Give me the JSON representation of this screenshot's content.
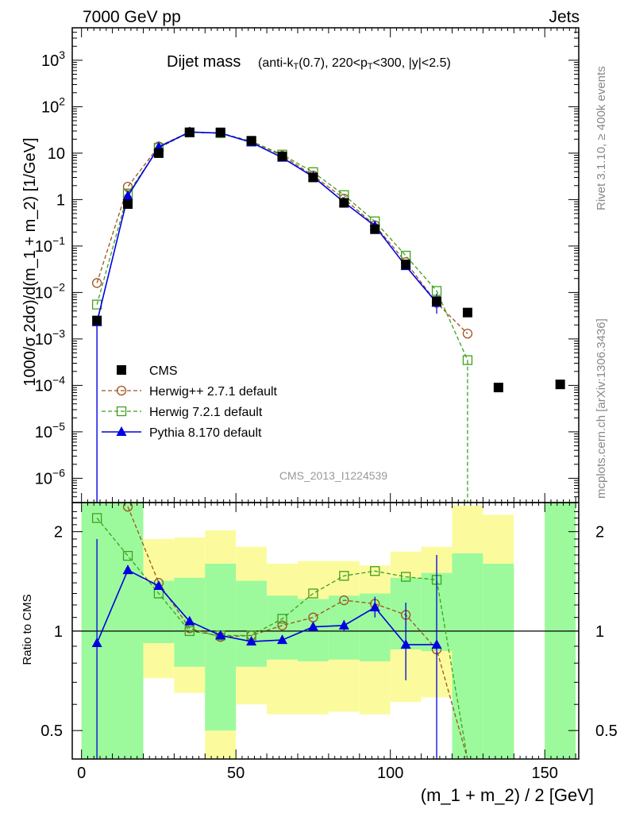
{
  "header": {
    "left": "7000 GeV pp",
    "right": "Jets"
  },
  "side_labels": {
    "rivet": "Rivet 3.1.10, ≥ 400k events",
    "mcplots": "mcplots.cern.ch [arXiv:1306.3436]"
  },
  "colors": {
    "cms": "#000000",
    "herwigpp": "#a0521e",
    "herwig7": "#3f9f1f",
    "pythia": "#0000e0",
    "band_inner": "#9cfa9c",
    "band_outer": "#fbfb9e"
  },
  "chart_data": [
    {
      "type": "scatter",
      "panel": "main",
      "title": "Dijet mass",
      "subtitle": "(anti-kT(0.7), 220<pT<300, |y|<2.5)",
      "analysis_id": "CMS_2013_I1224539",
      "ylabel": "1000/σ 2dσ)/d(m_1 + m_2) [1/GeV]",
      "xlim": [
        -3,
        161
      ],
      "ylim": [
        3e-07,
        5000
      ],
      "log_y": true,
      "y_tick_labels": [
        "10^-6",
        "10^-5",
        "10^-4",
        "10^-3",
        "10^-2",
        "10^-1",
        "1",
        "10",
        "10^2",
        "10^3"
      ],
      "legend_position": "bottom-left",
      "series": [
        {
          "name": "CMS",
          "key": "cms",
          "style": "filled-square",
          "x": [
            5,
            15,
            25,
            35,
            45,
            55,
            65,
            75,
            85,
            95,
            105,
            115,
            125,
            135,
            155
          ],
          "y": [
            0.0025,
            0.8,
            10.0,
            28.0,
            28.0,
            18.5,
            8.5,
            3.0,
            0.85,
            0.23,
            0.04,
            0.0065,
            0.0037,
            9e-05,
            0.000105
          ]
        },
        {
          "name": "Herwig++ 2.7.1 default",
          "key": "herwigpp",
          "style": "open-circle-dashed",
          "x": [
            5,
            15,
            25,
            35,
            45,
            55,
            65,
            75,
            85,
            95,
            105,
            115,
            125
          ],
          "y": [
            0.016,
            1.9,
            14.0,
            28.5,
            27.0,
            18.0,
            8.8,
            3.3,
            1.05,
            0.28,
            0.045,
            0.006,
            0.0013
          ]
        },
        {
          "name": "Herwig 7.2.1 default",
          "key": "herwig7",
          "style": "open-square-dashed",
          "x": [
            5,
            15,
            25,
            35,
            45,
            55,
            65,
            75,
            85,
            95,
            105,
            115,
            125
          ],
          "y": [
            0.0055,
            1.35,
            13.0,
            28.0,
            27.0,
            18.0,
            9.3,
            3.9,
            1.25,
            0.34,
            0.062,
            0.0108,
            0.00035
          ]
        },
        {
          "name": "Pythia 8.170 default",
          "key": "pythia",
          "style": "filled-triangle-solid",
          "x": [
            5,
            15,
            25,
            35,
            45,
            55,
            65,
            75,
            85,
            95,
            105,
            115
          ],
          "y": [
            0.0023,
            1.2,
            13.5,
            28.5,
            27.0,
            17.0,
            8.0,
            3.1,
            0.88,
            0.27,
            0.037,
            0.006
          ]
        }
      ]
    },
    {
      "type": "line",
      "panel": "ratio",
      "ylabel": "Ratio to CMS",
      "xlabel": "(m_1 + m_2) / 2 [GeV]",
      "xlim": [
        -3,
        161
      ],
      "ylim": [
        0.41,
        2.45
      ],
      "log_y": true,
      "x_tick_labels": [
        "0",
        "50",
        "100",
        "150"
      ],
      "y_tick_labels": [
        "0.5",
        "1",
        "2"
      ],
      "reference_line": 1,
      "bands": [
        {
          "x0": 0,
          "x1": 10,
          "inner": [
            0.41,
            2.45
          ],
          "outer": [
            0.41,
            2.45
          ]
        },
        {
          "x0": 10,
          "x1": 20,
          "inner": [
            0.41,
            2.45
          ],
          "outer": [
            0.41,
            2.45
          ]
        },
        {
          "x0": 20,
          "x1": 30,
          "inner": [
            0.92,
            1.42
          ],
          "outer": [
            0.72,
            1.9
          ]
        },
        {
          "x0": 30,
          "x1": 40,
          "inner": [
            0.78,
            1.45
          ],
          "outer": [
            0.65,
            1.92
          ]
        },
        {
          "x0": 40,
          "x1": 50,
          "inner": [
            0.5,
            1.6
          ],
          "outer": [
            0.41,
            2.02
          ]
        },
        {
          "x0": 50,
          "x1": 60,
          "inner": [
            0.78,
            1.42
          ],
          "outer": [
            0.6,
            1.8
          ]
        },
        {
          "x0": 60,
          "x1": 70,
          "inner": [
            0.82,
            1.28
          ],
          "outer": [
            0.56,
            1.6
          ]
        },
        {
          "x0": 70,
          "x1": 80,
          "inner": [
            0.81,
            1.25
          ],
          "outer": [
            0.56,
            1.63
          ]
        },
        {
          "x0": 80,
          "x1": 90,
          "inner": [
            0.82,
            1.28
          ],
          "outer": [
            0.57,
            1.63
          ]
        },
        {
          "x0": 90,
          "x1": 100,
          "inner": [
            0.81,
            1.3
          ],
          "outer": [
            0.56,
            1.58
          ]
        },
        {
          "x0": 100,
          "x1": 110,
          "inner": [
            0.88,
            1.45
          ],
          "outer": [
            0.61,
            1.74
          ]
        },
        {
          "x0": 110,
          "x1": 120,
          "inner": [
            0.87,
            1.5
          ],
          "outer": [
            0.63,
            1.8
          ]
        },
        {
          "x0": 120,
          "x1": 130,
          "inner": [
            0.41,
            1.72
          ],
          "outer": [
            0.41,
            2.4
          ]
        },
        {
          "x0": 130,
          "x1": 140,
          "inner": [
            0.41,
            1.6
          ],
          "outer": [
            0.41,
            2.25
          ]
        },
        {
          "x0": 150,
          "x1": 160,
          "inner": [
            0.41,
            2.45
          ],
          "outer": [
            0.41,
            2.45
          ]
        }
      ],
      "series": [
        {
          "name": "Herwig++ 2.7.1 default",
          "key": "herwigpp",
          "x": [
            15,
            25,
            35,
            45,
            55,
            65,
            75,
            85,
            95,
            105,
            115,
            125
          ],
          "y": [
            2.38,
            1.4,
            1.02,
            0.96,
            0.97,
            1.04,
            1.1,
            1.24,
            1.21,
            1.12,
            0.88,
            0.35
          ]
        },
        {
          "name": "Herwig 7.2.1 default",
          "key": "herwig7",
          "x": [
            5,
            15,
            25,
            35,
            45,
            55,
            65,
            75,
            85,
            95,
            105,
            115,
            125
          ],
          "y": [
            2.2,
            1.69,
            1.3,
            1.0,
            0.97,
            0.97,
            1.09,
            1.3,
            1.47,
            1.52,
            1.46,
            1.43,
            0.09
          ]
        },
        {
          "name": "Pythia 8.170 default",
          "key": "pythia",
          "x": [
            5,
            15,
            25,
            35,
            45,
            55,
            65,
            75,
            85,
            95,
            105,
            115
          ],
          "y": [
            0.92,
            1.53,
            1.37,
            1.07,
            0.97,
            0.93,
            0.94,
            1.03,
            1.04,
            1.18,
            0.91,
            0.91
          ],
          "err_lo": [
            0.6,
            0.04,
            0.02,
            0.01,
            0.01,
            0.01,
            0.01,
            0.02,
            0.04,
            0.08,
            0.2,
            0.51
          ],
          "err_hi": [
            0.98,
            0.05,
            0.02,
            0.01,
            0.01,
            0.01,
            0.01,
            0.02,
            0.04,
            0.09,
            0.31,
            0.79
          ]
        }
      ]
    }
  ]
}
